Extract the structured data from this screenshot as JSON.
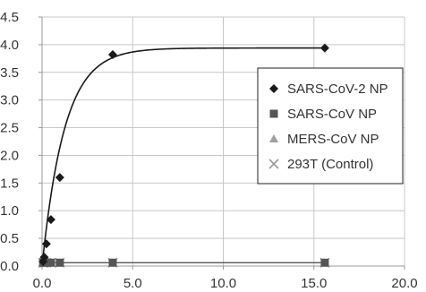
{
  "chart_data": {
    "type": "scatter",
    "title": "",
    "xlabel": "",
    "ylabel": "",
    "xlim": [
      0,
      20
    ],
    "ylim": [
      0,
      4.5
    ],
    "x_ticks": [
      0.0,
      5.0,
      10.0,
      15.0,
      20.0
    ],
    "y_ticks": [
      0.0,
      0.5,
      1.0,
      1.5,
      2.0,
      2.5,
      3.0,
      3.5,
      4.0,
      4.5
    ],
    "x_tick_labels": [
      "0.0",
      "5.0",
      "10.0",
      "15.0",
      "20.0"
    ],
    "y_tick_labels": [
      "0.0",
      "0.5",
      "1.0",
      "1.5",
      "2.0",
      "2.5",
      "3.0",
      "3.5",
      "4.0",
      "4.5"
    ],
    "grid": "horizontal and vertical",
    "legend_position": "right",
    "series": [
      {
        "name": "SARS-CoV-2 NP",
        "marker": "diamond",
        "color": "#1a1a1a",
        "fit_curve": true,
        "points": [
          [
            0.06,
            0.08
          ],
          [
            0.12,
            0.16
          ],
          [
            0.24,
            0.4
          ],
          [
            0.49,
            0.84
          ],
          [
            0.98,
            1.6
          ],
          [
            3.9,
            3.82
          ],
          [
            15.6,
            3.94
          ]
        ]
      },
      {
        "name": "SARS-CoV NP",
        "marker": "square",
        "color": "#555555",
        "fit_curve": false,
        "points": [
          [
            0.06,
            0.06
          ],
          [
            0.12,
            0.06
          ],
          [
            0.24,
            0.06
          ],
          [
            0.49,
            0.06
          ],
          [
            0.98,
            0.06
          ],
          [
            3.9,
            0.06
          ],
          [
            15.6,
            0.06
          ]
        ]
      },
      {
        "name": "MERS-CoV NP",
        "marker": "triangle",
        "color": "#a0a0a0",
        "fit_curve": false,
        "points": [
          [
            0.06,
            0.06
          ],
          [
            0.12,
            0.06
          ],
          [
            0.24,
            0.06
          ],
          [
            0.49,
            0.06
          ],
          [
            0.98,
            0.06
          ],
          [
            3.9,
            0.06
          ],
          [
            15.6,
            0.06
          ]
        ]
      },
      {
        "name": "293T (Control)",
        "marker": "x",
        "color": "#9a9a9a",
        "fit_curve": false,
        "points": [
          [
            0.06,
            0.06
          ],
          [
            0.12,
            0.06
          ],
          [
            0.24,
            0.06
          ],
          [
            0.49,
            0.06
          ],
          [
            0.98,
            0.06
          ],
          [
            3.9,
            0.06
          ],
          [
            15.6,
            0.06
          ]
        ]
      }
    ],
    "colors": {
      "grid": "#c8c8c8",
      "axis": "#999999",
      "baseline_curve": "#555555",
      "legend_border": "#222222"
    }
  }
}
